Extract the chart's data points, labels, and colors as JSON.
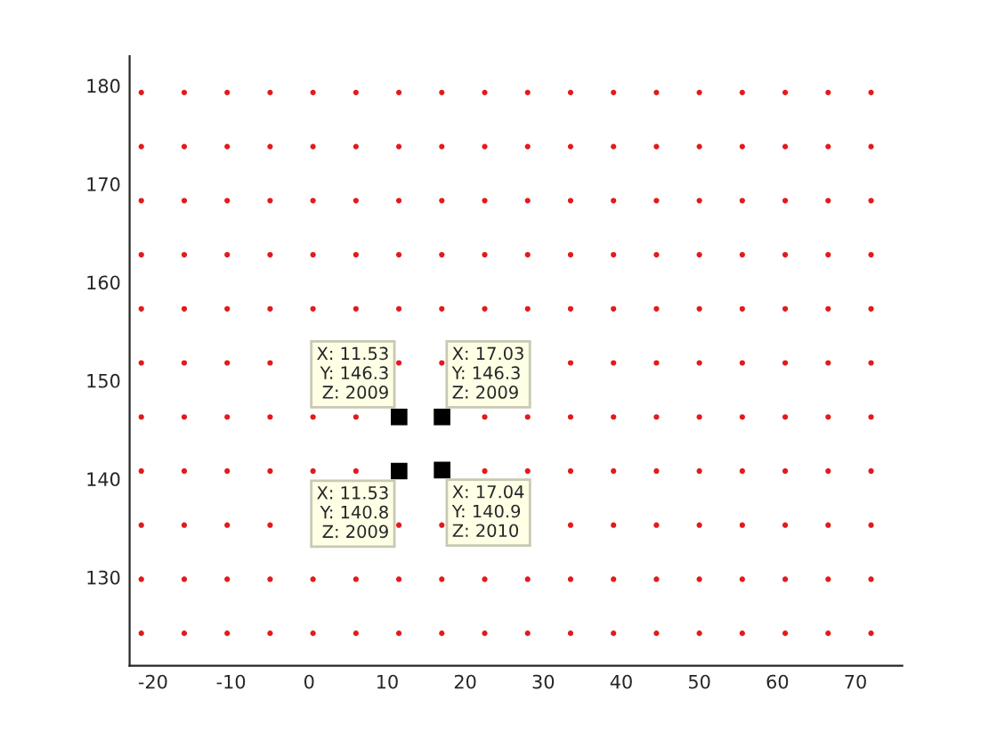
{
  "chart_data": {
    "type": "scatter",
    "x": [
      -21.5,
      -16,
      -10.5,
      -5,
      0.5,
      6,
      11.5,
      17,
      22.5,
      28,
      33.5,
      39,
      44.5,
      50,
      55.5,
      61,
      66.5,
      72
    ],
    "series": [
      {
        "color": "#e31a1c",
        "marker": "circle",
        "values": [
          179.3,
          179.3,
          179.3,
          179.3,
          179.3,
          179.3,
          179.3,
          179.3,
          179.3,
          179.3,
          179.3,
          179.3,
          179.3,
          179.3,
          179.3,
          179.3,
          179.3,
          179.3
        ]
      },
      {
        "color": "#e31a1c",
        "marker": "circle",
        "values": [
          173.8,
          173.8,
          173.8,
          173.8,
          173.8,
          173.8,
          173.8,
          173.8,
          173.8,
          173.8,
          173.8,
          173.8,
          173.8,
          173.8,
          173.8,
          173.8,
          173.8,
          173.8
        ]
      },
      {
        "color": "#e31a1c",
        "marker": "circle",
        "values": [
          168.3,
          168.3,
          168.3,
          168.3,
          168.3,
          168.3,
          168.3,
          168.3,
          168.3,
          168.3,
          168.3,
          168.3,
          168.3,
          168.3,
          168.3,
          168.3,
          168.3,
          168.3
        ]
      },
      {
        "color": "#e31a1c",
        "marker": "circle",
        "values": [
          162.8,
          162.8,
          162.8,
          162.8,
          162.8,
          162.8,
          162.8,
          162.8,
          162.8,
          162.8,
          162.8,
          162.8,
          162.8,
          162.8,
          162.8,
          162.8,
          162.8,
          162.8
        ]
      },
      {
        "color": "#e31a1c",
        "marker": "circle",
        "values": [
          157.3,
          157.3,
          157.3,
          157.3,
          157.3,
          157.3,
          157.3,
          157.3,
          157.3,
          157.3,
          157.3,
          157.3,
          157.3,
          157.3,
          157.3,
          157.3,
          157.3,
          157.3
        ]
      },
      {
        "color": "#e31a1c",
        "marker": "circle",
        "values": [
          151.8,
          151.8,
          151.8,
          151.8,
          null,
          null,
          151.8,
          151.8,
          null,
          null,
          151.8,
          151.8,
          151.8,
          151.8,
          151.8,
          151.8,
          151.8,
          151.8
        ]
      },
      {
        "color": "#e31a1c",
        "marker": "circle",
        "values": [
          146.3,
          146.3,
          146.3,
          146.3,
          146.3,
          146.3,
          null,
          null,
          146.3,
          146.3,
          146.3,
          146.3,
          146.3,
          146.3,
          146.3,
          146.3,
          146.3,
          146.3
        ]
      },
      {
        "color": "#e31a1c",
        "marker": "circle",
        "values": [
          140.8,
          140.8,
          140.8,
          140.8,
          140.8,
          140.8,
          null,
          null,
          140.8,
          140.8,
          140.8,
          140.8,
          140.8,
          140.8,
          140.8,
          140.8,
          140.8,
          140.8
        ]
      },
      {
        "color": "#e31a1c",
        "marker": "circle",
        "values": [
          135.3,
          135.3,
          135.3,
          135.3,
          null,
          null,
          135.3,
          135.3,
          null,
          null,
          135.3,
          135.3,
          135.3,
          135.3,
          135.3,
          135.3,
          135.3,
          135.3
        ]
      },
      {
        "color": "#e31a1c",
        "marker": "circle",
        "values": [
          129.8,
          129.8,
          129.8,
          129.8,
          129.8,
          129.8,
          129.8,
          129.8,
          129.8,
          129.8,
          129.8,
          129.8,
          129.8,
          129.8,
          129.8,
          129.8,
          129.8,
          129.8
        ]
      },
      {
        "color": "#e31a1c",
        "marker": "circle",
        "values": [
          124.3,
          124.3,
          124.3,
          124.3,
          124.3,
          124.3,
          124.3,
          124.3,
          124.3,
          124.3,
          124.3,
          124.3,
          124.3,
          124.3,
          124.3,
          124.3,
          124.3,
          124.3
        ]
      },
      {
        "color": "#000000",
        "marker": "square",
        "x": [
          11.53,
          17.03,
          11.53,
          17.04
        ],
        "values": [
          146.3,
          146.3,
          140.8,
          140.9
        ]
      }
    ],
    "annotations": [
      {
        "text": "X: 11.53\nY: 146.3\nZ: 2009",
        "x": 11.53,
        "y": 146.3
      },
      {
        "text": "X: 17.03\nY: 146.3\nZ: 2009",
        "x": 17.03,
        "y": 146.3
      },
      {
        "text": "X: 11.53\nY: 140.8\nZ: 2009",
        "x": 11.53,
        "y": 140.8
      },
      {
        "text": "X: 17.04\nY: 140.9\nZ: 2010",
        "x": 17.04,
        "y": 140.9
      }
    ],
    "xlim": [
      -23,
      76
    ],
    "ylim": [
      121,
      183
    ],
    "xticks": [
      -20,
      -10,
      0,
      10,
      20,
      30,
      40,
      50,
      60,
      70
    ],
    "yticks": [
      130,
      140,
      150,
      160,
      170,
      180
    ],
    "grid": false,
    "legend": false
  }
}
